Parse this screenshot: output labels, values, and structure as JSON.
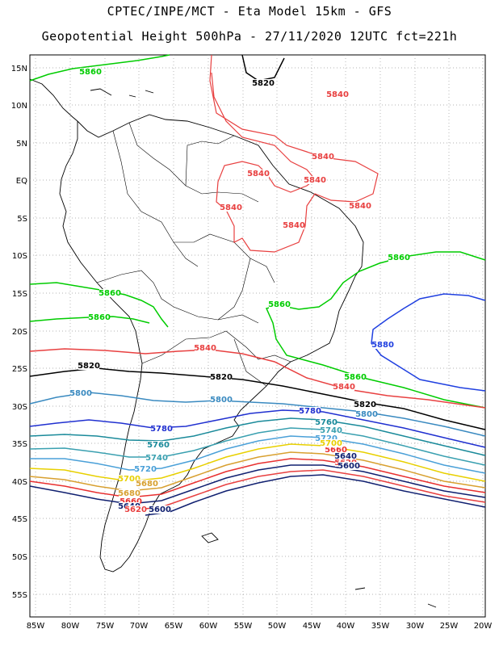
{
  "header": {
    "line1": "CPTEC/INPE/MCT -  Eta Model 15km - GFS",
    "line2": "Geopotential Height 500hPa - 27/11/2020 12UTC fct=221h"
  },
  "axes": {
    "lat_ticks": [
      "15N",
      "10N",
      "5N",
      "EQ",
      "5S",
      "10S",
      "15S",
      "20S",
      "25S",
      "30S",
      "35S",
      "40S",
      "45S",
      "50S",
      "55S"
    ],
    "lon_ticks": [
      "85W",
      "80W",
      "75W",
      "70W",
      "65W",
      "60W",
      "55W",
      "50W",
      "45W",
      "40W",
      "35W",
      "30W",
      "25W",
      "20W"
    ]
  },
  "contour_levels": [
    {
      "value": "5860",
      "color": "#00cc00"
    },
    {
      "value": "5840",
      "color": "#e84040"
    },
    {
      "value": "5820",
      "color": "#000000"
    },
    {
      "value": "5880",
      "color": "#2040e0"
    },
    {
      "value": "5800",
      "color": "#3a8ac0"
    },
    {
      "value": "5780",
      "color": "#2030d0"
    },
    {
      "value": "5760",
      "color": "#1a8a9a"
    },
    {
      "value": "5740",
      "color": "#3aa0b0"
    },
    {
      "value": "5720",
      "color": "#4aa0d8"
    },
    {
      "value": "5700",
      "color": "#e8d000"
    },
    {
      "value": "5680",
      "color": "#d8a030"
    },
    {
      "value": "5660",
      "color": "#e83030"
    },
    {
      "value": "5640",
      "color": "#102070"
    },
    {
      "value": "5620",
      "color": "#e84040"
    },
    {
      "value": "5600",
      "color": "#102070"
    }
  ],
  "contour_labels": [
    {
      "text": "5860",
      "color": "#00cc00"
    },
    {
      "text": "5820",
      "color": "#000000"
    },
    {
      "text": "5840",
      "color": "#e84040"
    },
    {
      "text": "5840",
      "color": "#e84040"
    },
    {
      "text": "5840",
      "color": "#e84040"
    },
    {
      "text": "5840",
      "color": "#e84040"
    },
    {
      "text": "5840",
      "color": "#e84040"
    },
    {
      "text": "5840",
      "color": "#e84040"
    },
    {
      "text": "5840",
      "color": "#e84040"
    },
    {
      "text": "5860",
      "color": "#00cc00"
    },
    {
      "text": "5860",
      "color": "#00cc00"
    },
    {
      "text": "5860",
      "color": "#00cc00"
    },
    {
      "text": "5860",
      "color": "#00cc00"
    },
    {
      "text": "5880",
      "color": "#2040e0"
    },
    {
      "text": "5840",
      "color": "#e84040"
    },
    {
      "text": "5820",
      "color": "#000000"
    },
    {
      "text": "5820",
      "color": "#000000"
    },
    {
      "text": "5860",
      "color": "#00cc00"
    },
    {
      "text": "5840",
      "color": "#e84040"
    },
    {
      "text": "5820",
      "color": "#000000"
    },
    {
      "text": "5800",
      "color": "#3a8ac0"
    },
    {
      "text": "5800",
      "color": "#3a8ac0"
    },
    {
      "text": "5800",
      "color": "#3a8ac0"
    },
    {
      "text": "5780",
      "color": "#2030d0"
    },
    {
      "text": "5780",
      "color": "#2030d0"
    },
    {
      "text": "5760",
      "color": "#1a8a9a"
    },
    {
      "text": "5760",
      "color": "#1a8a9a"
    },
    {
      "text": "5740",
      "color": "#3aa0b0"
    },
    {
      "text": "5740",
      "color": "#3aa0b0"
    },
    {
      "text": "5720",
      "color": "#4aa0d8"
    },
    {
      "text": "5720",
      "color": "#4aa0d8"
    },
    {
      "text": "5700",
      "color": "#e8d000"
    },
    {
      "text": "5680",
      "color": "#d8a030"
    },
    {
      "text": "5660",
      "color": "#e83030"
    },
    {
      "text": "5640",
      "color": "#102070"
    },
    {
      "text": "5620",
      "color": "#e84040"
    },
    {
      "text": "5600",
      "color": "#102070"
    },
    {
      "text": "5680",
      "color": "#d8a030"
    },
    {
      "text": "5660",
      "color": "#e83030"
    },
    {
      "text": "5640",
      "color": "#102070"
    },
    {
      "text": "5620",
      "color": "#e84040"
    },
    {
      "text": "5600",
      "color": "#102070"
    },
    {
      "text": "5700",
      "color": "#e8d000"
    }
  ]
}
